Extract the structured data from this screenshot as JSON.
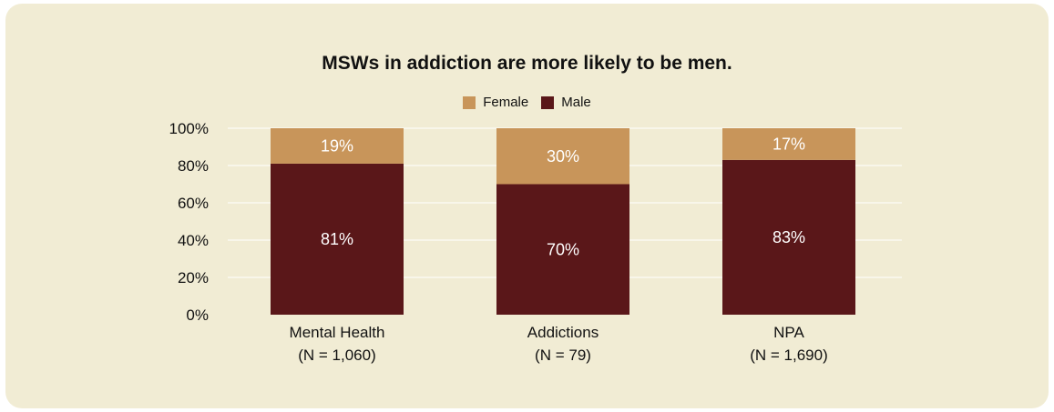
{
  "chart_data": {
    "type": "bar",
    "stacked": true,
    "title": "MSWs in addiction are more likely to be men.",
    "categories": [
      {
        "line1": "Mental Health",
        "line2": "(N = 1,060)"
      },
      {
        "line1": "Addictions",
        "line2": "(N = 79)"
      },
      {
        "line1": "NPA",
        "line2": "(N = 1,690)"
      }
    ],
    "series": [
      {
        "name": "Male",
        "color": "#5a1719",
        "values": [
          81,
          70,
          83
        ],
        "labels": [
          "81%",
          "70%",
          "83%"
        ]
      },
      {
        "name": "Female",
        "color": "#c8955a",
        "values": [
          19,
          30,
          17
        ],
        "labels": [
          "19%",
          "30%",
          "17%"
        ]
      }
    ],
    "ylim": [
      0,
      100
    ],
    "yticks": [
      "0%",
      "20%",
      "40%",
      "60%",
      "80%",
      "100%"
    ],
    "grid": true,
    "legend_position": "top-center"
  },
  "legend": {
    "female_label": "Female",
    "male_label": "Male",
    "female_color": "#c8955a",
    "male_color": "#5a1719"
  },
  "colors": {
    "panel_background": "#f1ecd4",
    "gridline": "#ffffff"
  }
}
